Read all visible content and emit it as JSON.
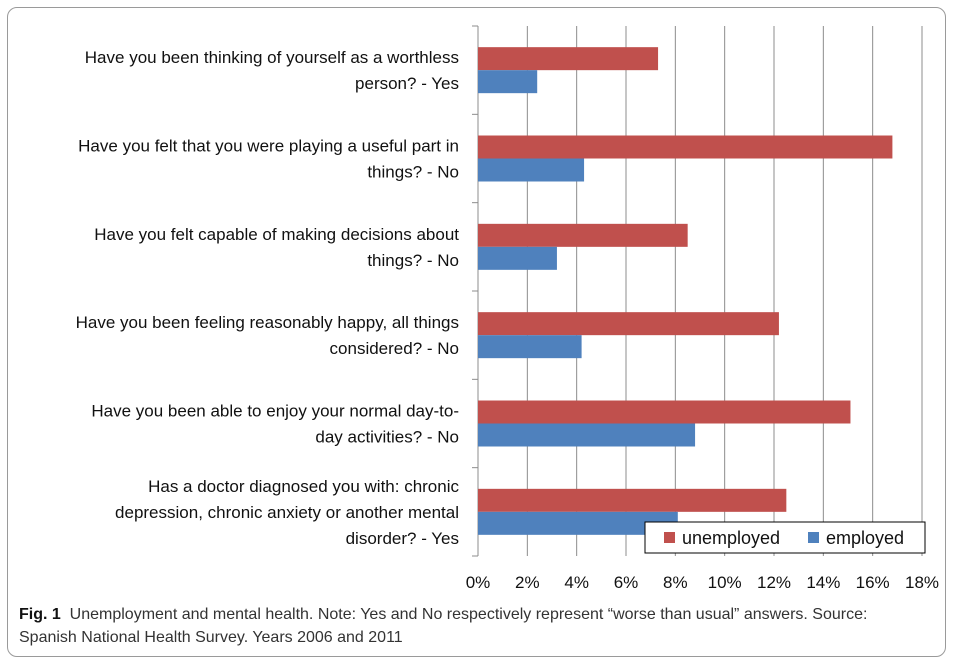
{
  "chart_data": {
    "type": "bar",
    "orientation": "horizontal",
    "categories": [
      [
        "Have you been thinking of yourself as a worthless",
        "person? - Yes"
      ],
      [
        "Have you felt that you were playing a useful part in",
        "things? - No"
      ],
      [
        "Have you felt capable of making decisions about",
        "things? - No"
      ],
      [
        "Have you been feeling reasonably happy, all things",
        "considered? - No"
      ],
      [
        "Have you been able to enjoy your normal day-to-",
        "day activities? - No"
      ],
      [
        "Has a doctor diagnosed you with: chronic",
        "depression, chronic anxiety or another mental",
        "disorder? - Yes"
      ]
    ],
    "series": [
      {
        "name": "unemployed",
        "color": "#c0504d",
        "values": [
          7.3,
          16.8,
          8.5,
          12.2,
          15.1,
          12.5
        ]
      },
      {
        "name": "employed",
        "color": "#4f81bd",
        "values": [
          2.4,
          4.3,
          3.2,
          4.2,
          8.8,
          8.1
        ]
      }
    ],
    "xlim": [
      0,
      18
    ],
    "xticks": [
      "0%",
      "2%",
      "4%",
      "6%",
      "8%",
      "10%",
      "12%",
      "14%",
      "16%",
      "18%"
    ],
    "grid": "vertical",
    "legend_position": "bottom-right"
  },
  "caption": {
    "label": "Fig. 1",
    "text": "Unemployment and mental health. Note: Yes and No respectively represent “worse than usual” answers. Source: Spanish National Health Survey. Years 2006 and 2011"
  }
}
